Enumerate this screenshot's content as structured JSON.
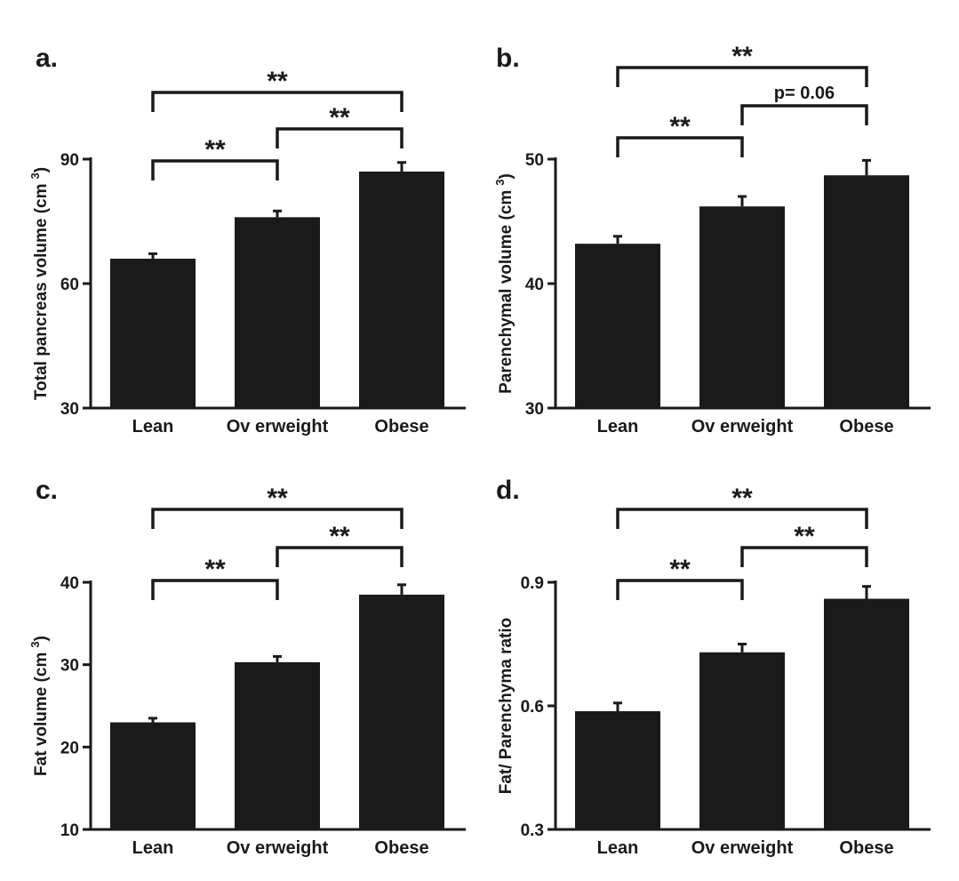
{
  "chart_data": [
    {
      "panel_label": "a.",
      "type": "bar",
      "categories": [
        "Lean",
        "Ov erweight",
        "Obese"
      ],
      "values": [
        66,
        76,
        87
      ],
      "errors": [
        1.2,
        1.5,
        2.2
      ],
      "ylabel_main": "Total pancreas volume (cm",
      "ylabel_sup": "3",
      "ylabel_end": ")",
      "ylim": [
        30,
        90
      ],
      "yticks": [
        30,
        60,
        90
      ],
      "grid": false,
      "legend": "none",
      "annotations": [
        {
          "from": 0,
          "to": 1,
          "level": 1,
          "text": "**"
        },
        {
          "from": 1,
          "to": 2,
          "level": 2,
          "text": "**"
        },
        {
          "from": 0,
          "to": 2,
          "level": 3,
          "text": "**"
        }
      ]
    },
    {
      "panel_label": "b.",
      "type": "bar",
      "categories": [
        "Lean",
        "Ov erweight",
        "Obese"
      ],
      "values": [
        43.2,
        46.2,
        48.7
      ],
      "errors": [
        0.6,
        0.8,
        1.2
      ],
      "ylabel_main": "Parenchymal volume (cm",
      "ylabel_sup": "3",
      "ylabel_end": ")",
      "ylim": [
        30,
        50
      ],
      "yticks": [
        30,
        40,
        50
      ],
      "grid": false,
      "legend": "none",
      "annotations": [
        {
          "from": 0,
          "to": 1,
          "level": 1,
          "text": "**"
        },
        {
          "from": 1,
          "to": 2,
          "level": 2,
          "text": "p= 0.06"
        },
        {
          "from": 0,
          "to": 2,
          "level": 3,
          "text": "**"
        }
      ]
    },
    {
      "panel_label": "c.",
      "type": "bar",
      "categories": [
        "Lean",
        "Ov erweight",
        "Obese"
      ],
      "values": [
        23,
        30.3,
        38.5
      ],
      "errors": [
        0.5,
        0.7,
        1.2
      ],
      "ylabel_main": "Fat volume (cm",
      "ylabel_sup": "3",
      "ylabel_end": ")",
      "ylim": [
        10,
        40
      ],
      "yticks": [
        10,
        20,
        30,
        40
      ],
      "grid": false,
      "legend": "none",
      "annotations": [
        {
          "from": 0,
          "to": 1,
          "level": 1,
          "text": "**"
        },
        {
          "from": 1,
          "to": 2,
          "level": 2,
          "text": "**"
        },
        {
          "from": 0,
          "to": 2,
          "level": 3,
          "text": "**"
        }
      ]
    },
    {
      "panel_label": "d.",
      "type": "bar",
      "categories": [
        "Lean",
        "Ov erweight",
        "Obese"
      ],
      "values": [
        0.587,
        0.73,
        0.86
      ],
      "errors": [
        0.02,
        0.02,
        0.03
      ],
      "ylabel_main": "Fat/ Parenchyma ratio",
      "ylabel_sup": "",
      "ylabel_end": "",
      "ylim": [
        0.3,
        0.9
      ],
      "yticks": [
        "0.3",
        "0.6",
        "0.9"
      ],
      "grid": false,
      "legend": "none",
      "annotations": [
        {
          "from": 0,
          "to": 1,
          "level": 1,
          "text": "**"
        },
        {
          "from": 1,
          "to": 2,
          "level": 2,
          "text": "**"
        },
        {
          "from": 0,
          "to": 2,
          "level": 3,
          "text": "**"
        }
      ]
    }
  ]
}
